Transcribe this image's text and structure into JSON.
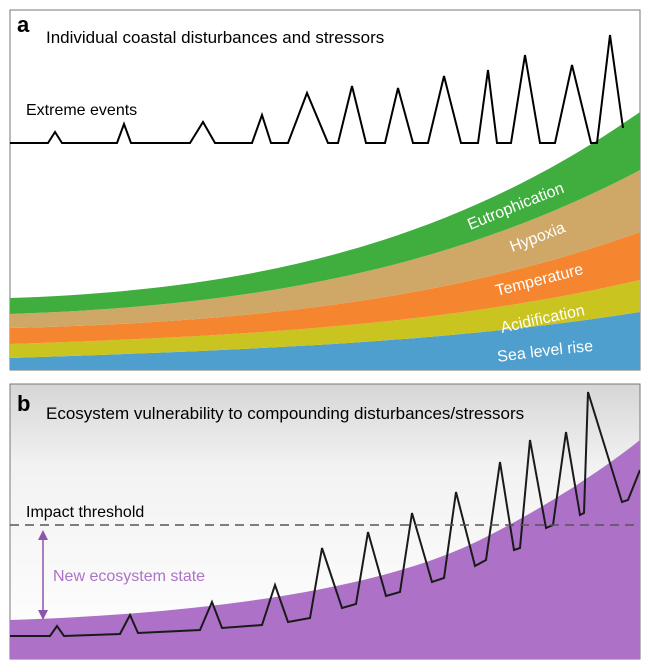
{
  "panel_a": {
    "letter": "a",
    "title": "Individual coastal disturbances and stressors",
    "extreme_events_label": "Extreme events",
    "bands": [
      {
        "label": "Eutrophication",
        "color": "#3fae3e"
      },
      {
        "label": "Hypoxia",
        "color": "#cfa867"
      },
      {
        "label": "Temperature",
        "color": "#f5852f"
      },
      {
        "label": "Acidification",
        "color": "#c9c41f"
      },
      {
        "label": "Sea level rise",
        "color": "#4e9fcd"
      }
    ]
  },
  "panel_b": {
    "letter": "b",
    "title": "Ecosystem vulnerability to compounding disturbances/stressors",
    "threshold_label": "Impact threshold",
    "state_label": "New ecosystem state",
    "fill_color": "#ad72c8",
    "arrow_color": "#8c55b0"
  }
}
